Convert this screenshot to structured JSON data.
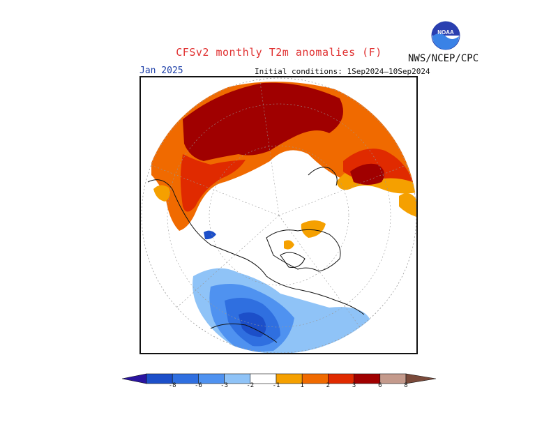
{
  "header": {
    "title": "CFSv2 monthly T2m anomalies (F)",
    "agency": "NWS/NCEP/CPC",
    "month": "Jan 2025",
    "initial_conditions": "Initial conditions: 1Sep2024–10Sep2024",
    "logo_label": "NOAA"
  },
  "legend": {
    "ticks": [
      "-8",
      "-6",
      "-3",
      "-2",
      "-1",
      "1",
      "2",
      "3",
      "6",
      "8"
    ],
    "colors": [
      "#2a14a0",
      "#1c4fc9",
      "#2f6fe0",
      "#4f92f0",
      "#8fc3f7",
      "#ffffff",
      "#f5a000",
      "#f06a00",
      "#e02a00",
      "#a00000",
      "#c49a8c",
      "#7a4a3a"
    ]
  },
  "map": {
    "projection": "north-polar-stereographic",
    "warm_regions": "Siberia, Central Asia, Alaska, Arctic coasts",
    "cold_regions": "Canada, Northern US"
  }
}
